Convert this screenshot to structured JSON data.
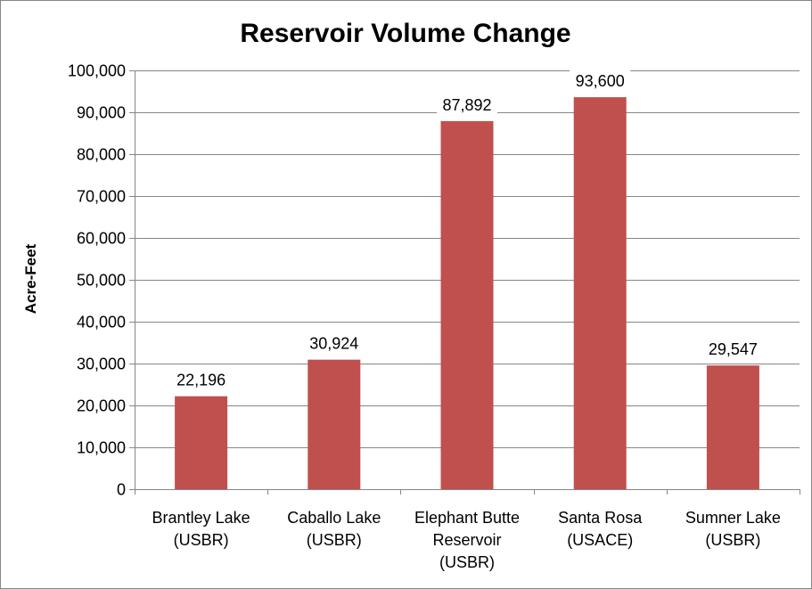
{
  "chart_data": {
    "type": "bar",
    "title": "Reservoir Volume Change",
    "xlabel": "",
    "ylabel": "Acre-Feet",
    "categories": [
      [
        "Brantley Lake",
        "(USBR)"
      ],
      [
        "Caballo Lake",
        "(USBR)"
      ],
      [
        "Elephant Butte",
        "Reservoir",
        "(USBR)"
      ],
      [
        "Santa Rosa",
        "(USACE)"
      ],
      [
        "Sumner Lake",
        "(USBR)"
      ]
    ],
    "values": [
      22196,
      30924,
      87892,
      93600,
      29547
    ],
    "value_labels": [
      "22,196",
      "30,924",
      "87,892",
      "93,600",
      "29,547"
    ],
    "ylim": [
      0,
      100000
    ],
    "yticks": [
      0,
      10000,
      20000,
      30000,
      40000,
      50000,
      60000,
      70000,
      80000,
      90000,
      100000
    ],
    "ytick_labels": [
      "0",
      "10,000",
      "20,000",
      "30,000",
      "40,000",
      "50,000",
      "60,000",
      "70,000",
      "80,000",
      "90,000",
      "100,000"
    ],
    "grid": true,
    "legend": "none",
    "bar_color": "#C0504D",
    "grid_color": "#868686"
  }
}
